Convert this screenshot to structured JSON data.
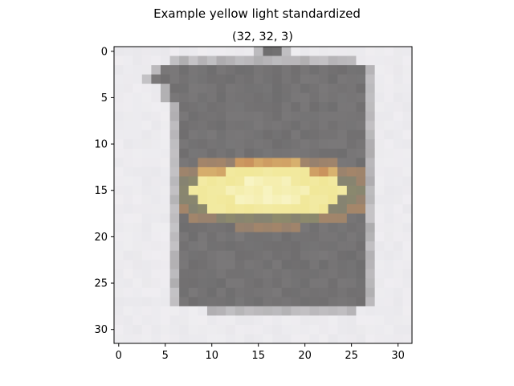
{
  "chart_data": {
    "type": "image",
    "title": "Example yellow light standardized",
    "subtitle": "(32, 32, 3)",
    "image_shape": [
      32,
      32,
      3
    ],
    "xlabel": "",
    "ylabel": "",
    "xlim": [
      -0.5,
      31.5
    ],
    "ylim": [
      31.5,
      -0.5
    ],
    "x_ticks": [
      0,
      5,
      10,
      15,
      20,
      25,
      30
    ],
    "y_ticks": [
      0,
      5,
      10,
      15,
      20,
      25,
      30
    ],
    "x_tick_labels": [
      "0",
      "5",
      "10",
      "15",
      "20",
      "25",
      "30"
    ],
    "y_tick_labels": [
      "0",
      "5",
      "10",
      "15",
      "20",
      "25",
      "30"
    ],
    "grid": false,
    "content": "Pixelated traffic light housing (gray box) with a lit yellow lamp band across rows ~12-18",
    "colors": {
      "background": "#e9e8ec",
      "housing_edge": "#9a989a",
      "housing": "#7a7879",
      "housing_dark": "#646364",
      "lamp_halo": "#c9925c",
      "lamp": "#efe48d",
      "lamp_core": "#f8f4c4",
      "lamp_rim": "#8d8a6c"
    }
  }
}
